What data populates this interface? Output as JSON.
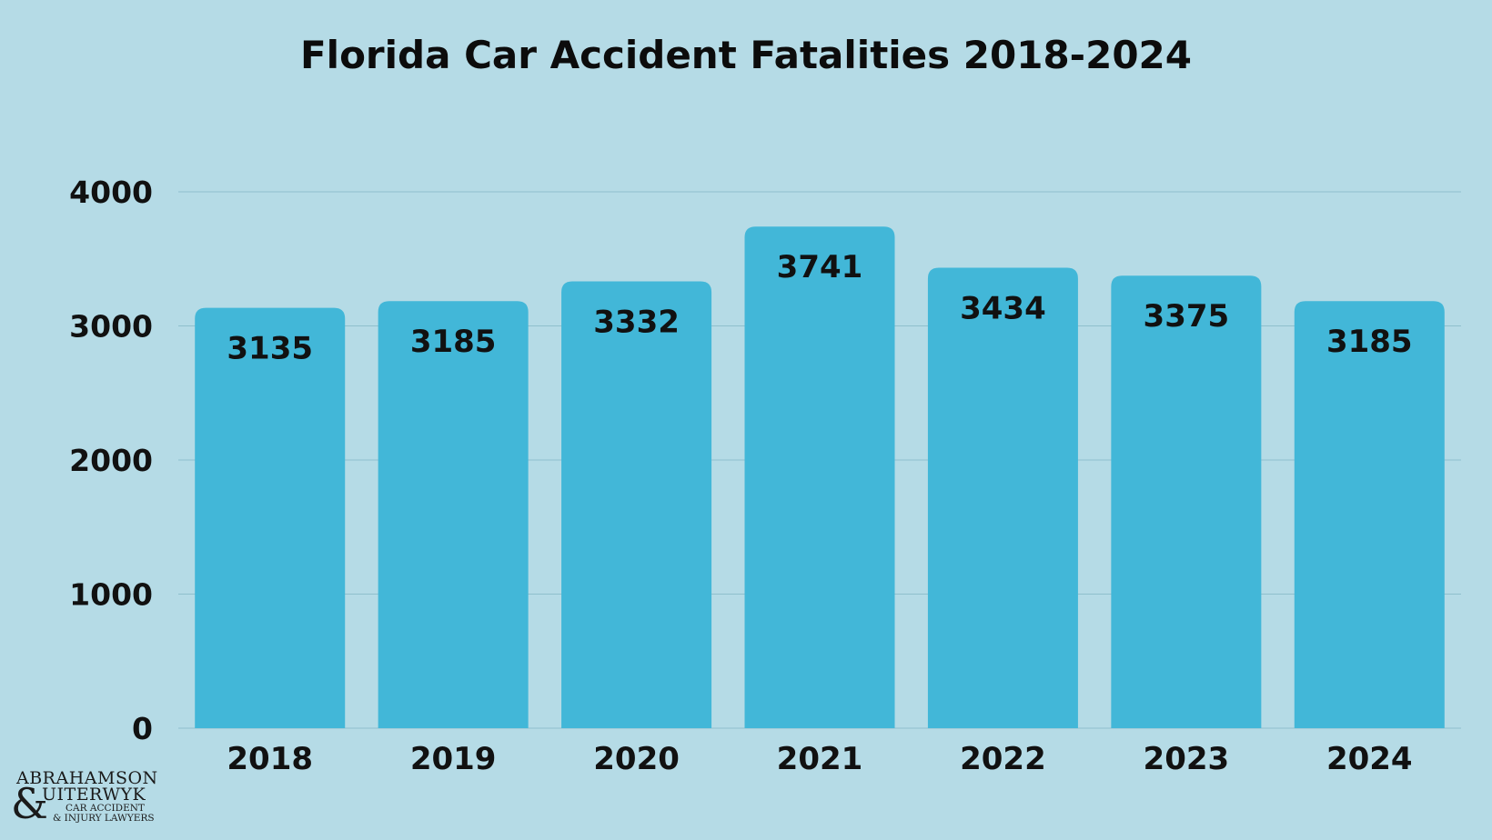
{
  "chart_data": {
    "type": "bar",
    "title": "Florida Car Accident Fatalities 2018-2024",
    "categories": [
      "2018",
      "2019",
      "2020",
      "2021",
      "2022",
      "2023",
      "2024"
    ],
    "values": [
      3135,
      3185,
      3332,
      3741,
      3434,
      3375,
      3185
    ],
    "value_labels": [
      "3135",
      "3185",
      "3332",
      "3741",
      "3434",
      "3375",
      "3185"
    ],
    "ylim": [
      0,
      4000
    ],
    "yticks": [
      0,
      1000,
      2000,
      3000,
      4000
    ],
    "ytick_labels": [
      "0",
      "1000",
      "2000",
      "3000",
      "4000"
    ],
    "xlabel": "",
    "ylabel": "",
    "grid": true,
    "legend": "none",
    "colors": {
      "background": "#b5dbe6",
      "bar": "#42b7d8",
      "gridline": "#8fbfcd",
      "text": "#111111"
    }
  },
  "logo": {
    "line1": "ABRAHAMSON",
    "ampersand": "&",
    "line2": "UITERWYK",
    "line3": "CAR ACCIDENT",
    "line4": "& INJURY LAWYERS"
  }
}
